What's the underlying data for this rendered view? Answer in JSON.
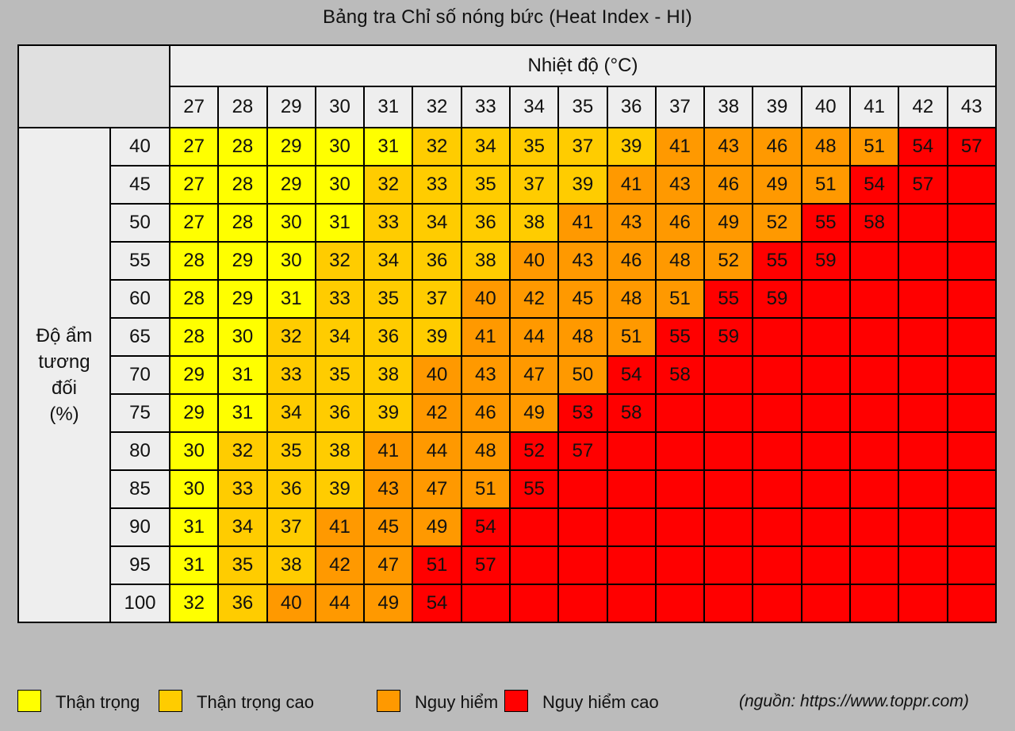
{
  "colors": {
    "than_trong": "#ffff00",
    "than_trong_cao": "#ffcc00",
    "nguy_hiem": "#ff9900",
    "nguy_hiem_cao": "#ff0000",
    "header_bg": "#eeeeee",
    "page_bg": "#bbbbbb"
  },
  "chart_data": {
    "type": "heatmap",
    "title": "Bảng tra Chỉ số nóng bức  (Heat Index - HI)",
    "xlabel": "Nhiệt độ   (°C)",
    "ylabel": "Độ ẩm tương đối (%)",
    "ylabel_lines": [
      "Độ ẩm",
      "tương",
      "đối",
      "(%)"
    ],
    "x": [
      27,
      28,
      29,
      30,
      31,
      32,
      33,
      34,
      35,
      36,
      37,
      38,
      39,
      40,
      41,
      42,
      43
    ],
    "y": [
      40,
      45,
      50,
      55,
      60,
      65,
      70,
      75,
      80,
      85,
      90,
      95,
      100
    ],
    "values": [
      [
        27,
        28,
        29,
        30,
        31,
        32,
        34,
        35,
        37,
        39,
        41,
        43,
        46,
        48,
        51,
        54,
        57
      ],
      [
        27,
        28,
        29,
        30,
        32,
        33,
        35,
        37,
        39,
        41,
        43,
        46,
        49,
        51,
        54,
        57,
        null
      ],
      [
        27,
        28,
        30,
        31,
        33,
        34,
        36,
        38,
        41,
        43,
        46,
        49,
        52,
        55,
        58,
        null,
        null
      ],
      [
        28,
        29,
        30,
        32,
        34,
        36,
        38,
        40,
        43,
        46,
        48,
        52,
        55,
        59,
        null,
        null,
        null
      ],
      [
        28,
        29,
        31,
        33,
        35,
        37,
        40,
        42,
        45,
        48,
        51,
        55,
        59,
        null,
        null,
        null,
        null
      ],
      [
        28,
        30,
        32,
        34,
        36,
        39,
        41,
        44,
        48,
        51,
        55,
        59,
        null,
        null,
        null,
        null,
        null
      ],
      [
        29,
        31,
        33,
        35,
        38,
        40,
        43,
        47,
        50,
        54,
        58,
        null,
        null,
        null,
        null,
        null,
        null
      ],
      [
        29,
        31,
        34,
        36,
        39,
        42,
        46,
        49,
        53,
        58,
        null,
        null,
        null,
        null,
        null,
        null,
        null
      ],
      [
        30,
        32,
        35,
        38,
        41,
        44,
        48,
        52,
        57,
        null,
        null,
        null,
        null,
        null,
        null,
        null,
        null
      ],
      [
        30,
        33,
        36,
        39,
        43,
        47,
        51,
        55,
        null,
        null,
        null,
        null,
        null,
        null,
        null,
        null,
        null
      ],
      [
        31,
        34,
        37,
        41,
        45,
        49,
        54,
        null,
        null,
        null,
        null,
        null,
        null,
        null,
        null,
        null,
        null
      ],
      [
        31,
        35,
        38,
        42,
        47,
        51,
        57,
        null,
        null,
        null,
        null,
        null,
        null,
        null,
        null,
        null,
        null
      ],
      [
        32,
        36,
        40,
        44,
        49,
        54,
        null,
        null,
        null,
        null,
        null,
        null,
        null,
        null,
        null,
        null,
        null
      ]
    ],
    "levels": [
      [
        0,
        0,
        0,
        0,
        0,
        1,
        1,
        1,
        1,
        1,
        2,
        2,
        2,
        2,
        2,
        3,
        3
      ],
      [
        0,
        0,
        0,
        0,
        1,
        1,
        1,
        1,
        1,
        2,
        2,
        2,
        2,
        2,
        3,
        3,
        3
      ],
      [
        0,
        0,
        0,
        0,
        1,
        1,
        1,
        1,
        2,
        2,
        2,
        2,
        2,
        3,
        3,
        3,
        3
      ],
      [
        0,
        0,
        0,
        1,
        1,
        1,
        1,
        2,
        2,
        2,
        2,
        2,
        3,
        3,
        3,
        3,
        3
      ],
      [
        0,
        0,
        0,
        1,
        1,
        1,
        2,
        2,
        2,
        2,
        2,
        3,
        3,
        3,
        3,
        3,
        3
      ],
      [
        0,
        0,
        1,
        1,
        1,
        1,
        2,
        2,
        2,
        2,
        3,
        3,
        3,
        3,
        3,
        3,
        3
      ],
      [
        0,
        0,
        1,
        1,
        1,
        2,
        2,
        2,
        2,
        3,
        3,
        3,
        3,
        3,
        3,
        3,
        3
      ],
      [
        0,
        0,
        1,
        1,
        1,
        2,
        2,
        2,
        3,
        3,
        3,
        3,
        3,
        3,
        3,
        3,
        3
      ],
      [
        0,
        1,
        1,
        1,
        2,
        2,
        2,
        3,
        3,
        3,
        3,
        3,
        3,
        3,
        3,
        3,
        3
      ],
      [
        0,
        1,
        1,
        1,
        2,
        2,
        2,
        3,
        3,
        3,
        3,
        3,
        3,
        3,
        3,
        3,
        3
      ],
      [
        0,
        1,
        1,
        2,
        2,
        2,
        3,
        3,
        3,
        3,
        3,
        3,
        3,
        3,
        3,
        3,
        3
      ],
      [
        0,
        1,
        1,
        2,
        2,
        3,
        3,
        3,
        3,
        3,
        3,
        3,
        3,
        3,
        3,
        3,
        3
      ],
      [
        0,
        1,
        2,
        2,
        2,
        3,
        3,
        3,
        3,
        3,
        3,
        3,
        3,
        3,
        3,
        3,
        3
      ]
    ],
    "legend": [
      {
        "label": "Thận trọng",
        "color": "#ffff00"
      },
      {
        "label": "Thận trọng cao",
        "color": "#ffcc00"
      },
      {
        "label": "Nguy hiểm",
        "color": "#ff9900"
      },
      {
        "label": "Nguy hiểm cao",
        "color": "#ff0000"
      }
    ],
    "legend_placement": "bottom",
    "grid": true
  },
  "source_note": "(nguồn: https://www.toppr.com)"
}
